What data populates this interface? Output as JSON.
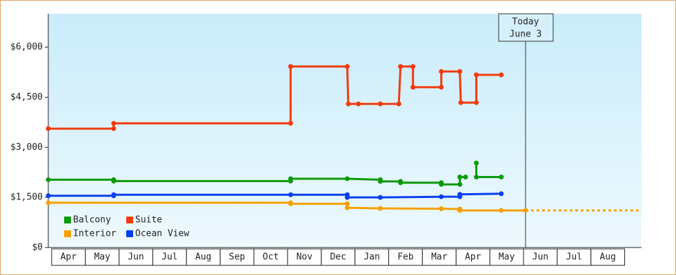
{
  "chart_data": {
    "type": "line",
    "categories": [
      "Apr",
      "May",
      "Jun",
      "Jul",
      "Aug",
      "Sep",
      "Oct",
      "Nov",
      "Dec",
      "Jan",
      "Feb",
      "Mar",
      "Apr",
      "May",
      "Jun",
      "Jul",
      "Aug"
    ],
    "xlim": [
      -0.1,
      17.5
    ],
    "ylim": [
      0,
      7000
    ],
    "yticks": [
      {
        "value": 0,
        "label": "$0"
      },
      {
        "value": 1500,
        "label": "$1,500"
      },
      {
        "value": 3000,
        "label": "$3,000"
      },
      {
        "value": 4500,
        "label": "$4,500"
      },
      {
        "value": 6000,
        "label": "$6,000"
      }
    ],
    "today": {
      "lines": [
        "Today",
        "June 3"
      ],
      "x": 14.06
    },
    "series": [
      {
        "name": "Balcony",
        "color": "#0a9a0a",
        "x": [
          -0.1,
          1.84,
          1.84,
          7.09,
          7.09,
          8.77,
          9.75,
          9.75,
          10.35,
          10.35,
          11.56,
          11.56,
          12.11,
          12.11,
          12.28,
          null,
          12.6,
          12.6,
          13.34
        ],
        "values": [
          2030,
          2030,
          1990,
          1990,
          2060,
          2060,
          2030,
          1980,
          1980,
          1940,
          1940,
          1890,
          1890,
          2110,
          2110,
          null,
          2530,
          2110,
          2110
        ]
      },
      {
        "name": "Suite",
        "color": "#f23a0c",
        "x": [
          -0.1,
          1.84,
          1.84,
          7.09,
          7.09,
          8.77,
          8.8,
          9.1,
          9.75,
          10.3,
          10.35,
          10.72,
          10.72,
          11.56,
          11.56,
          12.11,
          12.14,
          12.6,
          12.6,
          13.34
        ],
        "values": [
          3560,
          3560,
          3720,
          3720,
          5420,
          5420,
          4300,
          4300,
          4300,
          4300,
          5420,
          5420,
          4800,
          4800,
          5270,
          5270,
          4340,
          4340,
          5170,
          5170
        ]
      },
      {
        "name": "Interior",
        "color": "#f5a000",
        "x": [
          -0.1,
          7.09,
          7.09,
          8.77,
          8.77,
          9.75,
          11.56,
          12.11,
          12.11,
          13.34,
          14.06
        ],
        "values": [
          1340,
          1340,
          1310,
          1310,
          1190,
          1170,
          1160,
          1150,
          1110,
          1110,
          1110
        ]
      },
      {
        "name": "Ocean View",
        "color": "#0a3ff0",
        "x": [
          -0.1,
          1.84,
          1.84,
          7.09,
          8.77,
          8.77,
          9.75,
          11.56,
          12.11,
          12.11,
          13.34
        ],
        "values": [
          1550,
          1550,
          1580,
          1580,
          1580,
          1500,
          1500,
          1520,
          1520,
          1590,
          1610
        ]
      }
    ]
  }
}
